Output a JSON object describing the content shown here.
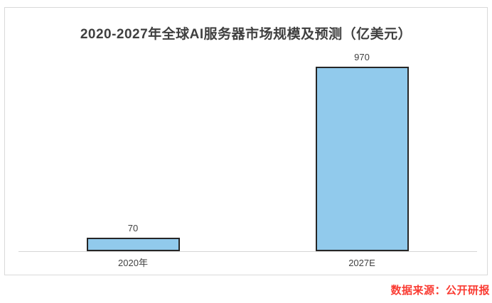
{
  "chart_data": {
    "type": "bar",
    "title": "2020-2027年全球AI服务器市场规模及预测（亿美元）",
    "categories": [
      "2020年",
      "2027E"
    ],
    "values": [
      70,
      970
    ],
    "xlabel": "",
    "ylabel": "",
    "unit": "亿美元",
    "ylim": [
      0,
      1000
    ],
    "grid": false,
    "legend": "none",
    "value_labels_shown": true,
    "bar_fill_color": "#91caec",
    "bar_border_color": "#262626",
    "axis_line_color": "#d6d6d6",
    "label_color": "#404040",
    "title_color": "#3f3f3f"
  },
  "source": {
    "text": "数据来源：公开研报",
    "color": "#fa3b32"
  }
}
